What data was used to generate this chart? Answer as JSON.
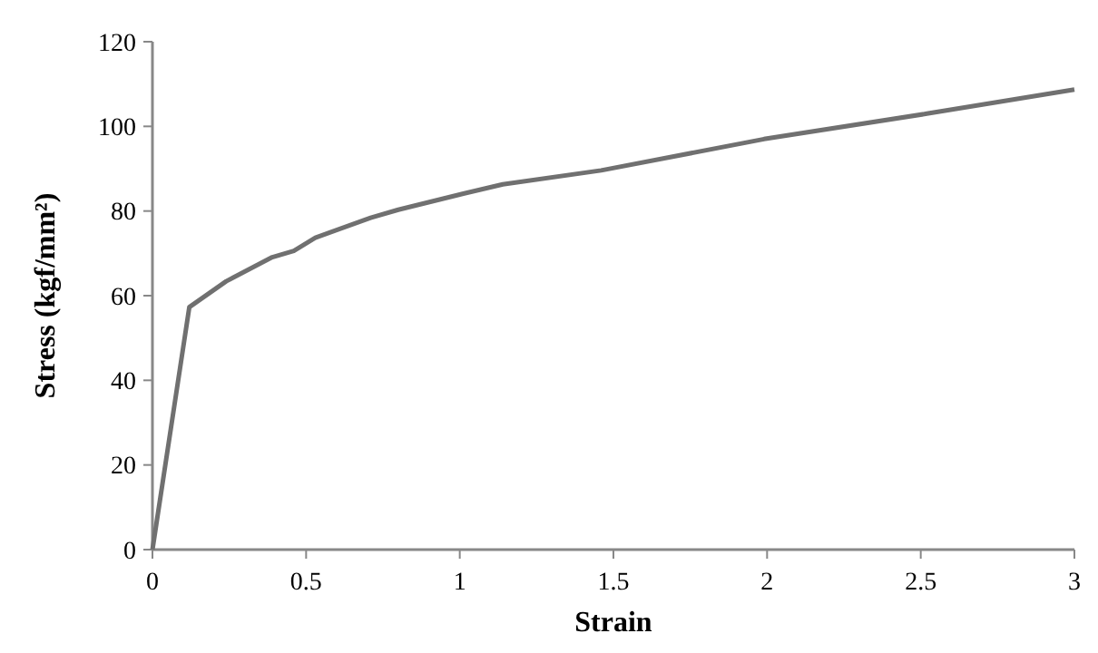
{
  "chart_data": {
    "type": "line",
    "xlabel": "Strain",
    "ylabel": "Stress (kgf/mm²)",
    "x": [
      0,
      0.12,
      0.24,
      0.39,
      0.46,
      0.53,
      0.71,
      0.8,
      1,
      1.14,
      1.46,
      1.99,
      2.52,
      3
    ],
    "series": [
      {
        "color": "#707070",
        "values": [
          0,
          57.3,
          63.4,
          69.1,
          70.6,
          73.7,
          78.4,
          80.3,
          83.9,
          86.3,
          89.6,
          97,
          103,
          108.7
        ]
      }
    ],
    "xlim": [
      0,
      3
    ],
    "xticks": [
      0,
      0.5,
      1,
      1.5,
      2,
      2.5,
      3
    ],
    "ylim": [
      0,
      120
    ],
    "yticks": [
      0,
      20,
      40,
      60,
      80,
      100,
      120
    ],
    "grid": false,
    "marker": "none",
    "line_style": "solid"
  }
}
